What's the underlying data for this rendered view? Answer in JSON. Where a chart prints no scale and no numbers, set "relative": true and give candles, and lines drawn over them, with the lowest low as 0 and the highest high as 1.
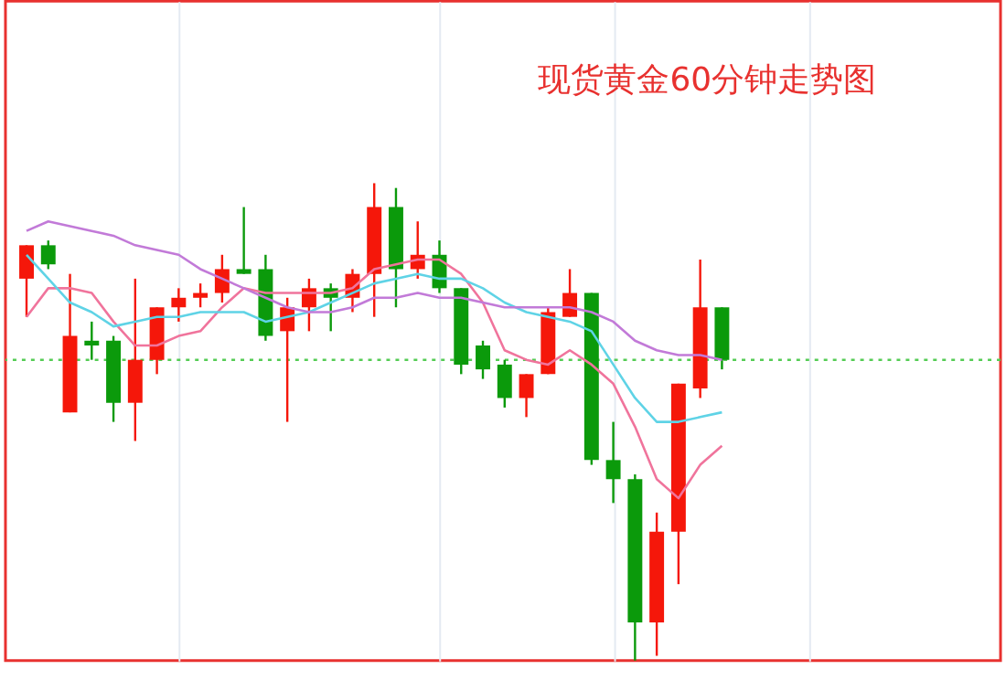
{
  "chart_data": {
    "type": "candlestick",
    "title": "现货黄金60分钟走势图",
    "relative": true,
    "categories": [
      null,
      null,
      null,
      null,
      null,
      null,
      null,
      null,
      null,
      null,
      null,
      null,
      null,
      null,
      null,
      null,
      null,
      null,
      null,
      null,
      null,
      null,
      null,
      null,
      null,
      null,
      null,
      null,
      null,
      null,
      null,
      null,
      null
    ],
    "ohlc": [
      [
        0.8,
        0.87,
        0.72,
        0.87
      ],
      [
        0.87,
        0.88,
        0.82,
        0.83
      ],
      [
        0.52,
        0.81,
        0.52,
        0.68
      ],
      [
        0.67,
        0.71,
        0.63,
        0.66
      ],
      [
        0.67,
        0.68,
        0.5,
        0.54
      ],
      [
        0.54,
        0.8,
        0.46,
        0.63
      ],
      [
        0.63,
        0.74,
        0.6,
        0.74
      ],
      [
        0.74,
        0.78,
        0.71,
        0.76
      ],
      [
        0.76,
        0.79,
        0.74,
        0.77
      ],
      [
        0.77,
        0.85,
        0.75,
        0.82
      ],
      [
        0.82,
        0.95,
        0.81,
        0.81
      ],
      [
        0.82,
        0.85,
        0.67,
        0.68
      ],
      [
        0.69,
        0.76,
        0.5,
        0.74
      ],
      [
        0.74,
        0.8,
        0.69,
        0.78
      ],
      [
        0.78,
        0.79,
        0.69,
        0.76
      ],
      [
        0.76,
        0.82,
        0.73,
        0.81
      ],
      [
        0.81,
        1.0,
        0.72,
        0.95
      ],
      [
        0.95,
        0.99,
        0.74,
        0.82
      ],
      [
        0.82,
        0.92,
        0.8,
        0.85
      ],
      [
        0.85,
        0.88,
        0.77,
        0.78
      ],
      [
        0.78,
        0.78,
        0.6,
        0.62
      ],
      [
        0.66,
        0.67,
        0.59,
        0.61
      ],
      [
        0.62,
        0.63,
        0.53,
        0.55
      ],
      [
        0.55,
        0.6,
        0.51,
        0.6
      ],
      [
        0.6,
        0.74,
        0.6,
        0.73
      ],
      [
        0.72,
        0.82,
        0.72,
        0.77
      ],
      [
        0.77,
        0.77,
        0.41,
        0.42
      ],
      [
        0.42,
        0.5,
        0.33,
        0.38
      ],
      [
        0.38,
        0.39,
        0.0,
        0.08
      ],
      [
        0.08,
        0.31,
        0.01,
        0.27
      ],
      [
        0.27,
        0.58,
        0.16,
        0.58
      ],
      [
        0.57,
        0.84,
        0.55,
        0.74
      ],
      [
        0.74,
        0.74,
        0.61,
        0.63
      ]
    ],
    "colors": [
      "#f5170a",
      "#0b9a0b",
      "#f5170a",
      "#0b9a0b",
      "#0b9a0b",
      "#f5170a",
      "#f5170a",
      "#f5170a",
      "#f5170a",
      "#f5170a",
      "#0b9a0b",
      "#0b9a0b",
      "#f5170a",
      "#f5170a",
      "#0b9a0b",
      "#f5170a",
      "#f5170a",
      "#0b9a0b",
      "#f5170a",
      "#0b9a0b",
      "#0b9a0b",
      "#0b9a0b",
      "#0b9a0b",
      "#f5170a",
      "#f5170a",
      "#f5170a",
      "#0b9a0b",
      "#0b9a0b",
      "#0b9a0b",
      "#f5170a",
      "#f5170a",
      "#f5170a",
      "#0b9a0b"
    ],
    "series": [
      {
        "type": "line",
        "color": "#f0749c",
        "values": [
          0.72,
          0.78,
          0.78,
          0.77,
          0.71,
          0.66,
          0.66,
          0.68,
          0.69,
          0.74,
          0.78,
          0.77,
          0.77,
          0.77,
          0.77,
          0.78,
          0.82,
          0.83,
          0.84,
          0.84,
          0.81,
          0.75,
          0.65,
          0.63,
          0.62,
          0.65,
          0.62,
          0.58,
          0.49,
          0.38,
          0.34,
          0.41,
          0.45
        ]
      },
      {
        "type": "line",
        "color": "#5fd3e6",
        "values": [
          0.85,
          0.8,
          0.75,
          0.73,
          0.7,
          0.71,
          0.72,
          0.72,
          0.73,
          0.73,
          0.73,
          0.71,
          0.72,
          0.73,
          0.75,
          0.77,
          0.79,
          0.8,
          0.81,
          0.8,
          0.8,
          0.78,
          0.75,
          0.73,
          0.72,
          0.71,
          0.69,
          0.62,
          0.55,
          0.5,
          0.5,
          0.51,
          0.52
        ]
      },
      {
        "type": "line",
        "color": "#c27ad8",
        "values": [
          0.9,
          0.92,
          0.91,
          0.9,
          0.89,
          0.87,
          0.86,
          0.85,
          0.82,
          0.8,
          0.78,
          0.76,
          0.74,
          0.73,
          0.73,
          0.74,
          0.76,
          0.76,
          0.77,
          0.76,
          0.76,
          0.75,
          0.74,
          0.74,
          0.74,
          0.74,
          0.73,
          0.71,
          0.67,
          0.65,
          0.64,
          0.64,
          0.63
        ]
      }
    ],
    "ref_lines": [
      {
        "axis": "y",
        "value": 0.63,
        "color": "#55cc55",
        "line_style": "dotted"
      }
    ],
    "grid": true,
    "marker": "none",
    "line_style": "solid"
  }
}
